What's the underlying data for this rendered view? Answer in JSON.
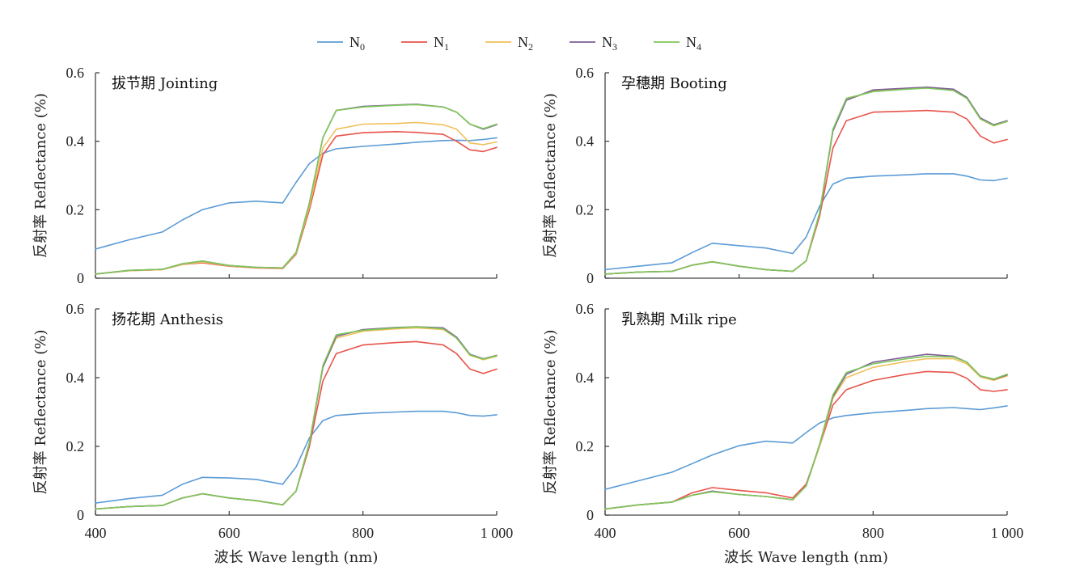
{
  "chart_data": {
    "type": "line",
    "legend": {
      "placement": "top-center",
      "entries": [
        {
          "base": "N",
          "sub": "0",
          "color": "#5b9bd5"
        },
        {
          "base": "N",
          "sub": "1",
          "color": "#e8534a"
        },
        {
          "base": "N",
          "sub": "2",
          "color": "#f0c05a"
        },
        {
          "base": "N",
          "sub": "3",
          "color": "#7d5e96"
        },
        {
          "base": "N",
          "sub": "4",
          "color": "#7ec75a"
        }
      ]
    },
    "xlim": [
      400,
      1000
    ],
    "ylim": [
      0,
      0.6
    ],
    "xticks": [
      400,
      600,
      800,
      1000
    ],
    "xtick_labels": [
      "400",
      "600",
      "800",
      "1 000"
    ],
    "yticks": [
      0,
      0.2,
      0.4,
      0.6
    ],
    "ytick_labels": [
      "0",
      "0.2",
      "0.4",
      "0.6"
    ],
    "xlabel": "波长 Wave length (nm)",
    "ylabel": "反射率 Reflectance (%)",
    "panels": [
      {
        "title": "拔节期 Jointing",
        "x": [
          400,
          450,
          500,
          530,
          560,
          600,
          640,
          680,
          700,
          720,
          740,
          760,
          800,
          850,
          880,
          920,
          940,
          960,
          980,
          1000
        ],
        "series": [
          {
            "name": "N0",
            "values": [
              0.085,
              0.112,
              0.135,
              0.17,
              0.2,
              0.22,
              0.225,
              0.22,
              0.28,
              0.335,
              0.365,
              0.378,
              0.385,
              0.392,
              0.397,
              0.402,
              0.403,
              0.402,
              0.405,
              0.41
            ]
          },
          {
            "name": "N1",
            "values": [
              0.012,
              0.022,
              0.025,
              0.04,
              0.045,
              0.035,
              0.03,
              0.028,
              0.07,
              0.2,
              0.36,
              0.415,
              0.425,
              0.428,
              0.426,
              0.42,
              0.4,
              0.375,
              0.37,
              0.382
            ]
          },
          {
            "name": "N2",
            "values": [
              0.012,
              0.022,
              0.025,
              0.04,
              0.047,
              0.036,
              0.031,
              0.029,
              0.072,
              0.21,
              0.38,
              0.435,
              0.45,
              0.452,
              0.455,
              0.448,
              0.435,
              0.395,
              0.39,
              0.398
            ]
          },
          {
            "name": "N3",
            "values": [
              0.012,
              0.023,
              0.026,
              0.042,
              0.05,
              0.037,
              0.032,
              0.03,
              0.075,
              0.22,
              0.41,
              0.49,
              0.502,
              0.506,
              0.508,
              0.5,
              0.485,
              0.45,
              0.435,
              0.448
            ]
          },
          {
            "name": "N4",
            "values": [
              0.012,
              0.023,
              0.026,
              0.042,
              0.05,
              0.037,
              0.032,
              0.03,
              0.075,
              0.22,
              0.41,
              0.49,
              0.5,
              0.505,
              0.507,
              0.5,
              0.485,
              0.45,
              0.437,
              0.45
            ]
          }
        ]
      },
      {
        "title": "孕穗期 Booting",
        "x": [
          400,
          450,
          500,
          530,
          560,
          600,
          640,
          680,
          700,
          720,
          740,
          760,
          800,
          850,
          880,
          920,
          940,
          960,
          980,
          1000
        ],
        "series": [
          {
            "name": "N0",
            "values": [
              0.025,
              0.035,
              0.045,
              0.075,
              0.102,
              0.095,
              0.088,
              0.072,
              0.12,
              0.21,
              0.275,
              0.292,
              0.298,
              0.302,
              0.305,
              0.305,
              0.298,
              0.287,
              0.285,
              0.292
            ]
          },
          {
            "name": "N1",
            "values": [
              0.012,
              0.018,
              0.02,
              0.038,
              0.048,
              0.035,
              0.025,
              0.02,
              0.05,
              0.18,
              0.38,
              0.46,
              0.485,
              0.488,
              0.49,
              0.485,
              0.465,
              0.415,
              0.395,
              0.405
            ]
          },
          {
            "name": "N2",
            "values": [
              0.012,
              0.018,
              0.02,
              0.038,
              0.048,
              0.035,
              0.025,
              0.02,
              0.05,
              0.19,
              0.43,
              0.52,
              0.548,
              0.552,
              0.556,
              0.55,
              0.525,
              0.465,
              0.445,
              0.458
            ]
          },
          {
            "name": "N3",
            "values": [
              0.012,
              0.018,
              0.02,
              0.038,
              0.048,
              0.035,
              0.025,
              0.02,
              0.05,
              0.19,
              0.43,
              0.52,
              0.55,
              0.555,
              0.558,
              0.552,
              0.528,
              0.468,
              0.448,
              0.46
            ]
          },
          {
            "name": "N4",
            "values": [
              0.012,
              0.018,
              0.02,
              0.038,
              0.048,
              0.035,
              0.025,
              0.02,
              0.05,
              0.19,
              0.435,
              0.525,
              0.545,
              0.552,
              0.555,
              0.548,
              0.525,
              0.465,
              0.446,
              0.458
            ]
          }
        ]
      },
      {
        "title": "扬花期 Anthesis",
        "x": [
          400,
          450,
          500,
          530,
          560,
          600,
          640,
          680,
          700,
          720,
          740,
          760,
          800,
          850,
          880,
          920,
          940,
          960,
          980,
          1000
        ],
        "series": [
          {
            "name": "N0",
            "values": [
              0.035,
              0.048,
              0.058,
              0.09,
              0.11,
              0.108,
              0.104,
              0.09,
              0.14,
              0.225,
              0.275,
              0.29,
              0.296,
              0.3,
              0.302,
              0.302,
              0.298,
              0.29,
              0.288,
              0.292
            ]
          },
          {
            "name": "N1",
            "values": [
              0.018,
              0.025,
              0.028,
              0.05,
              0.062,
              0.05,
              0.042,
              0.03,
              0.07,
              0.2,
              0.39,
              0.47,
              0.495,
              0.502,
              0.505,
              0.495,
              0.47,
              0.425,
              0.412,
              0.425
            ]
          },
          {
            "name": "N2",
            "values": [
              0.018,
              0.025,
              0.028,
              0.05,
              0.062,
              0.05,
              0.042,
              0.03,
              0.07,
              0.21,
              0.43,
              0.515,
              0.535,
              0.542,
              0.545,
              0.54,
              0.515,
              0.465,
              0.452,
              0.462
            ]
          },
          {
            "name": "N3",
            "values": [
              0.018,
              0.025,
              0.028,
              0.05,
              0.062,
              0.05,
              0.042,
              0.03,
              0.07,
              0.21,
              0.43,
              0.52,
              0.54,
              0.546,
              0.548,
              0.545,
              0.518,
              0.468,
              0.455,
              0.465
            ]
          },
          {
            "name": "N4",
            "values": [
              0.018,
              0.025,
              0.028,
              0.05,
              0.062,
              0.05,
              0.042,
              0.03,
              0.07,
              0.21,
              0.435,
              0.525,
              0.538,
              0.545,
              0.548,
              0.542,
              0.515,
              0.466,
              0.454,
              0.464
            ]
          }
        ]
      },
      {
        "title": "乳熟期 Milk ripe",
        "x": [
          400,
          450,
          500,
          530,
          560,
          600,
          640,
          680,
          700,
          720,
          740,
          760,
          800,
          850,
          880,
          920,
          940,
          960,
          980,
          1000
        ],
        "series": [
          {
            "name": "N0",
            "values": [
              0.075,
              0.1,
              0.125,
              0.15,
              0.175,
              0.202,
              0.215,
              0.21,
              0.24,
              0.268,
              0.283,
              0.29,
              0.298,
              0.305,
              0.31,
              0.313,
              0.31,
              0.307,
              0.312,
              0.318
            ]
          },
          {
            "name": "N1",
            "values": [
              0.018,
              0.03,
              0.038,
              0.065,
              0.08,
              0.072,
              0.065,
              0.05,
              0.09,
              0.2,
              0.32,
              0.365,
              0.392,
              0.41,
              0.418,
              0.415,
              0.398,
              0.365,
              0.36,
              0.365
            ]
          },
          {
            "name": "N2",
            "values": [
              0.018,
              0.03,
              0.038,
              0.058,
              0.068,
              0.06,
              0.054,
              0.045,
              0.085,
              0.2,
              0.34,
              0.4,
              0.43,
              0.447,
              0.455,
              0.455,
              0.44,
              0.402,
              0.392,
              0.405
            ]
          },
          {
            "name": "N3",
            "values": [
              0.018,
              0.03,
              0.038,
              0.058,
              0.07,
              0.06,
              0.054,
              0.045,
              0.085,
              0.205,
              0.345,
              0.41,
              0.445,
              0.46,
              0.468,
              0.462,
              0.445,
              0.405,
              0.395,
              0.408
            ]
          },
          {
            "name": "N4",
            "values": [
              0.018,
              0.03,
              0.038,
              0.058,
              0.068,
              0.06,
              0.054,
              0.045,
              0.085,
              0.205,
              0.35,
              0.415,
              0.44,
              0.455,
              0.462,
              0.46,
              0.445,
              0.405,
              0.396,
              0.41
            ]
          }
        ]
      }
    ]
  }
}
